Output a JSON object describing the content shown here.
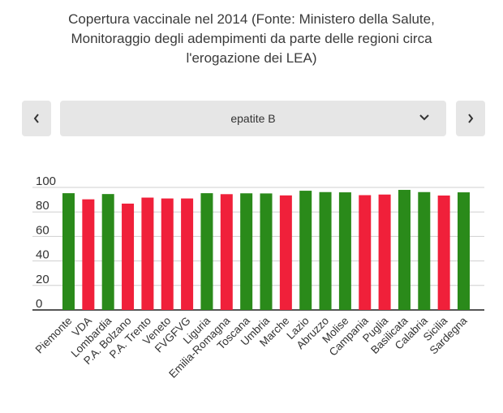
{
  "title_lines": [
    "Copertura vaccinale nel 2014 (Fonte: Ministero della Salute,",
    "Monitoraggio degli adempimenti da parte delle regioni circa",
    "l'erogazione dei LEA)"
  ],
  "selector": {
    "selected": "epatite B",
    "prev_icon": "chevron-left-icon",
    "next_icon": "chevron-right-icon",
    "dropdown_icon": "chevron-down-icon"
  },
  "colors": {
    "green": "#2a8a1a",
    "red": "#f0203a",
    "panel": "#e6e6e6"
  },
  "chart_data": {
    "type": "bar",
    "title": "",
    "xlabel": "",
    "ylabel": "",
    "ylim": [
      0,
      100
    ],
    "yticks": [
      0,
      20,
      40,
      60,
      80,
      100
    ],
    "grid": true,
    "categories": [
      "Piemonte",
      "VDA",
      "Lombardia",
      "P.A. Bolzano",
      "P.A. Trento",
      "Veneto",
      "FVGFVG",
      "Liguria",
      "Emilia-Romagna",
      "Toscana",
      "Umbria",
      "Marche",
      "Lazio",
      "Abruzzo",
      "Molise",
      "Campania",
      "Puglia",
      "Basilicata",
      "Calabria",
      "Sicilia",
      "Sardegna"
    ],
    "values": [
      95.3,
      90.3,
      94.6,
      86.8,
      91.7,
      91.0,
      91.0,
      95.3,
      94.5,
      95.2,
      95.1,
      93.5,
      97.3,
      96.2,
      96.0,
      93.7,
      94.2,
      98.0,
      96.2,
      93.4,
      96.0
    ],
    "bar_status": [
      "green",
      "red",
      "green",
      "red",
      "red",
      "red",
      "red",
      "green",
      "red",
      "green",
      "green",
      "red",
      "green",
      "green",
      "green",
      "red",
      "red",
      "green",
      "green",
      "red",
      "green"
    ]
  }
}
